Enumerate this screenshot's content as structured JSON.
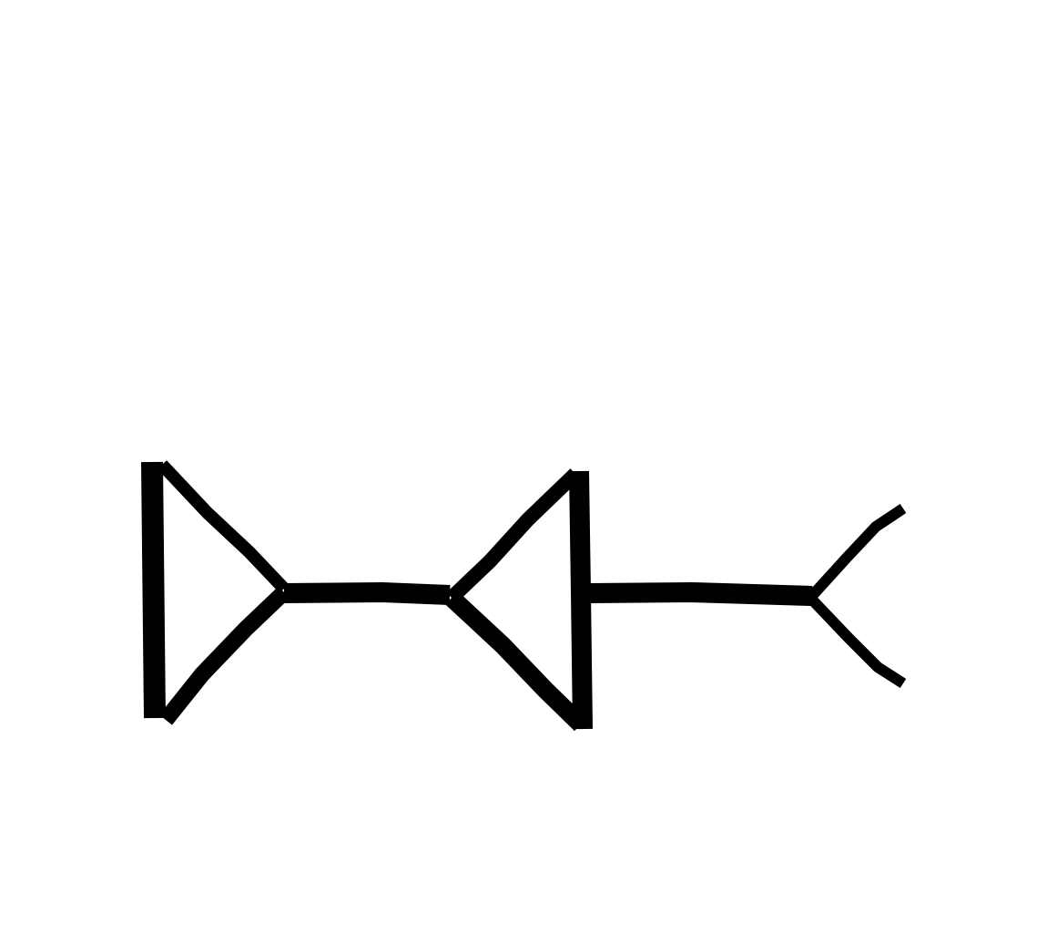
{
  "diagram": {
    "ink_color": "#000000",
    "background_color": "#ffffff",
    "figure_description_visible_text": "",
    "shapes": [
      {
        "name": "left-triangle-shape",
        "kind": "triangle",
        "points_right": true
      },
      {
        "name": "left-connector-line",
        "kind": "line"
      },
      {
        "name": "middle-triangle-shape",
        "kind": "triangle",
        "points_right": false
      },
      {
        "name": "middle-vertical-bar",
        "kind": "line"
      },
      {
        "name": "right-connector-line",
        "kind": "line"
      },
      {
        "name": "right-fork-shape",
        "kind": "fork",
        "opens_right": true
      }
    ]
  }
}
